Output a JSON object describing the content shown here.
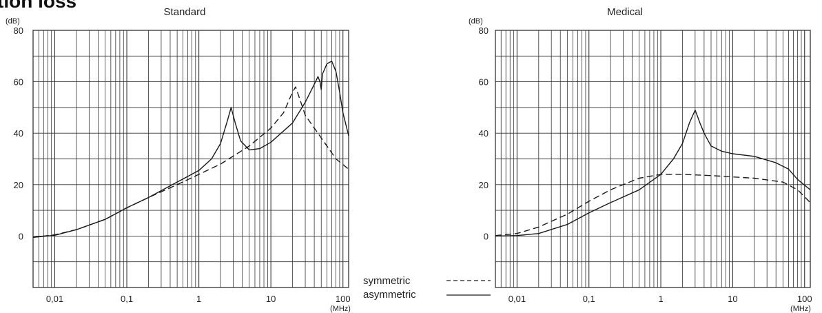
{
  "page": {
    "title": "tion loss"
  },
  "legend": {
    "symmetric_label": "symmetric",
    "asymmetric_label": "asymmetric"
  },
  "colors": {
    "line": "#1a1a1a",
    "grid": "#333333",
    "background": "#ffffff"
  },
  "chart_data": [
    {
      "type": "line",
      "title": "Standard",
      "y_unit_label": "(dB)",
      "x_unit_label": "(MHz)",
      "x_scale": "log",
      "xlim": [
        0.005,
        120
      ],
      "ylim": [
        -20,
        80
      ],
      "x_ticks": [
        {
          "value": 0.01,
          "label": "0,01"
        },
        {
          "value": 0.1,
          "label": "0,1"
        },
        {
          "value": 1,
          "label": "1"
        },
        {
          "value": 10,
          "label": "10"
        },
        {
          "value": 100,
          "label": "100"
        }
      ],
      "y_ticks": [
        {
          "value": 0,
          "label": "0"
        },
        {
          "value": 20,
          "label": "20"
        },
        {
          "value": 40,
          "label": "40"
        },
        {
          "value": 60,
          "label": "60"
        },
        {
          "value": 80,
          "label": "80"
        }
      ],
      "grid": true,
      "series": [
        {
          "name": "symmetric",
          "style": "dashed",
          "points": [
            [
              0.005,
              -0.5
            ],
            [
              0.01,
              0.5
            ],
            [
              0.02,
              2.5
            ],
            [
              0.05,
              6.5
            ],
            [
              0.1,
              11
            ],
            [
              0.2,
              15
            ],
            [
              0.5,
              20
            ],
            [
              1,
              24
            ],
            [
              2,
              28
            ],
            [
              5,
              35
            ],
            [
              10,
              42
            ],
            [
              15,
              48
            ],
            [
              20,
              56
            ],
            [
              22,
              58
            ],
            [
              24,
              55
            ],
            [
              30,
              47
            ],
            [
              40,
              42
            ],
            [
              60,
              35
            ],
            [
              80,
              30
            ],
            [
              120,
              26
            ]
          ]
        },
        {
          "name": "asymmetric",
          "style": "solid",
          "points": [
            [
              0.005,
              -0.5
            ],
            [
              0.01,
              0.3
            ],
            [
              0.02,
              2.5
            ],
            [
              0.05,
              6.5
            ],
            [
              0.1,
              11
            ],
            [
              0.2,
              15
            ],
            [
              0.5,
              21
            ],
            [
              1,
              25.5
            ],
            [
              1.5,
              30
            ],
            [
              2,
              36
            ],
            [
              2.5,
              45
            ],
            [
              2.8,
              50
            ],
            [
              3.2,
              44
            ],
            [
              3.8,
              37
            ],
            [
              5,
              33.5
            ],
            [
              7,
              34
            ],
            [
              10,
              36.5
            ],
            [
              20,
              44
            ],
            [
              30,
              52
            ],
            [
              40,
              59
            ],
            [
              45,
              62
            ],
            [
              48,
              60
            ],
            [
              50,
              57
            ],
            [
              52,
              63
            ],
            [
              60,
              67
            ],
            [
              70,
              68
            ],
            [
              80,
              64
            ],
            [
              90,
              56
            ],
            [
              100,
              48
            ],
            [
              120,
              39
            ]
          ]
        }
      ]
    },
    {
      "type": "line",
      "title": "Medical",
      "y_unit_label": "(dB)",
      "x_unit_label": "(MHz)",
      "x_scale": "log",
      "xlim": [
        0.005,
        120
      ],
      "ylim": [
        -20,
        80
      ],
      "x_ticks": [
        {
          "value": 0.01,
          "label": "0,01"
        },
        {
          "value": 0.1,
          "label": "0,1"
        },
        {
          "value": 1,
          "label": "1"
        },
        {
          "value": 10,
          "label": "10"
        },
        {
          "value": 100,
          "label": "100"
        }
      ],
      "y_ticks": [
        {
          "value": 0,
          "label": "0"
        },
        {
          "value": 20,
          "label": "20"
        },
        {
          "value": 40,
          "label": "40"
        },
        {
          "value": 60,
          "label": "60"
        },
        {
          "value": 80,
          "label": "80"
        }
      ],
      "grid": true,
      "series": [
        {
          "name": "symmetric",
          "style": "dashed",
          "points": [
            [
              0.005,
              0.2
            ],
            [
              0.01,
              1
            ],
            [
              0.02,
              3.5
            ],
            [
              0.05,
              8.5
            ],
            [
              0.1,
              13.5
            ],
            [
              0.2,
              18
            ],
            [
              0.5,
              22.5
            ],
            [
              1,
              24
            ],
            [
              2,
              24
            ],
            [
              5,
              23.5
            ],
            [
              10,
              23
            ],
            [
              20,
              22.5
            ],
            [
              50,
              21
            ],
            [
              80,
              18
            ],
            [
              120,
              13
            ]
          ]
        },
        {
          "name": "asymmetric",
          "style": "solid",
          "points": [
            [
              0.005,
              0
            ],
            [
              0.01,
              0.2
            ],
            [
              0.02,
              1
            ],
            [
              0.05,
              4.5
            ],
            [
              0.1,
              9
            ],
            [
              0.2,
              13
            ],
            [
              0.5,
              18
            ],
            [
              1,
              24
            ],
            [
              1.5,
              30
            ],
            [
              2,
              36
            ],
            [
              2.5,
              44
            ],
            [
              3,
              49
            ],
            [
              3.5,
              44
            ],
            [
              4,
              40
            ],
            [
              5,
              35
            ],
            [
              7,
              33
            ],
            [
              10,
              32
            ],
            [
              20,
              31
            ],
            [
              40,
              28.5
            ],
            [
              60,
              26
            ],
            [
              80,
              22
            ],
            [
              120,
              18
            ]
          ]
        }
      ]
    }
  ]
}
